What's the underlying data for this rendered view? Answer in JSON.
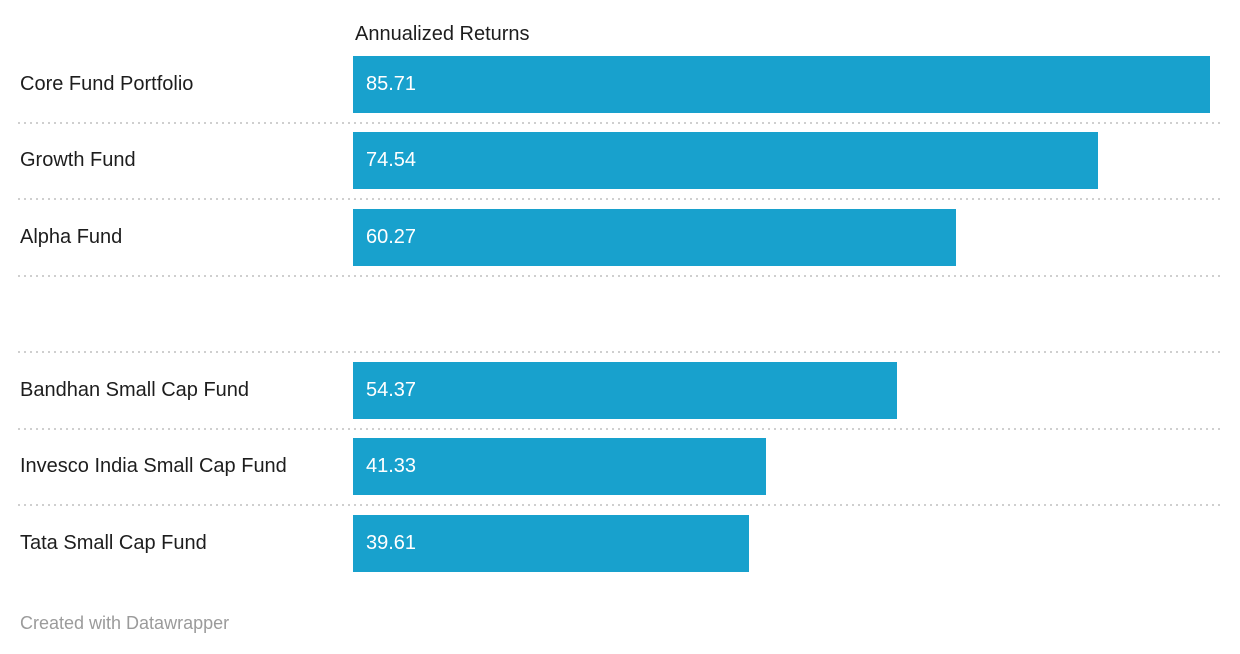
{
  "chart_data": {
    "type": "bar",
    "title": "",
    "column_header": "Annualized Returns",
    "categories": [
      "Core Fund Portfolio",
      "Growth Fund",
      "Alpha Fund",
      "",
      "Bandhan Small Cap Fund",
      "Invesco India Small Cap Fund",
      "Tata Small Cap Fund"
    ],
    "values": [
      85.71,
      74.54,
      60.27,
      null,
      54.37,
      41.33,
      39.61
    ],
    "value_labels": [
      "85.71",
      "74.54",
      "60.27",
      "",
      "54.37",
      "41.33",
      "39.61"
    ],
    "xlabel": "",
    "ylabel": "",
    "axis_max": 86.7,
    "legend": "none",
    "grid": "dotted row separators",
    "orientation": "horizontal"
  },
  "colors": {
    "bar": "#18a1cd",
    "label_text": "#1d1d1d",
    "value_text": "#ffffff",
    "separator": "#cfcfcf",
    "footer_text": "#9b9b9b",
    "background": "#ffffff"
  },
  "footer": {
    "attribution": "Created with Datawrapper"
  }
}
